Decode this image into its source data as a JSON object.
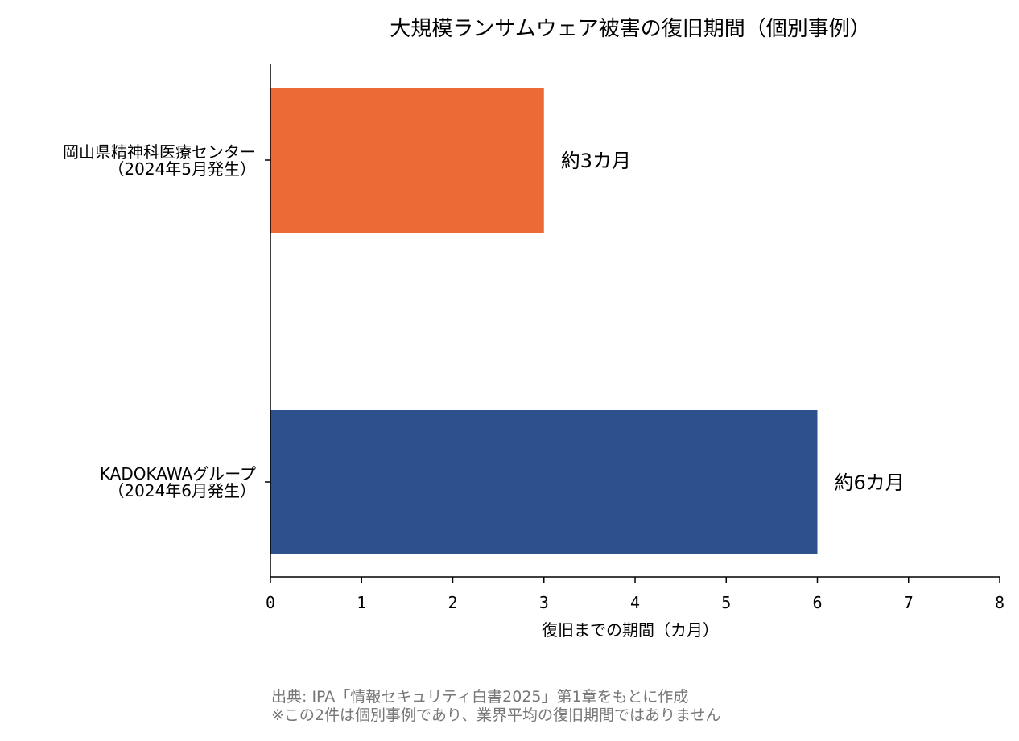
{
  "chart_data": {
    "type": "bar",
    "orientation": "horizontal",
    "title": "大規模ランサムウェア被害の復旧期間（個別事例）",
    "xlabel": "復旧までの期間（カ月）",
    "ylabel": "",
    "xlim": [
      0,
      8
    ],
    "xticks": [
      "0",
      "1",
      "2",
      "3",
      "4",
      "5",
      "6",
      "7",
      "8"
    ],
    "categories": [
      [
        "岡山県精神科医療センター",
        "（2024年5月発生）"
      ],
      [
        "KADOKAWAグループ",
        "（2024年6月発生）"
      ]
    ],
    "values": [
      3,
      6
    ],
    "data_labels": [
      "約3カ月",
      "約6カ月"
    ],
    "colors": [
      "#EC6A35",
      "#2E518D"
    ],
    "grid": false,
    "legend": "none"
  },
  "footnote": {
    "line1": "出典: IPA「情報セキュリティ白書2025」第1章をもとに作成",
    "line2": "※この2件は個別事例であり、業界平均の復旧期間ではありません"
  }
}
